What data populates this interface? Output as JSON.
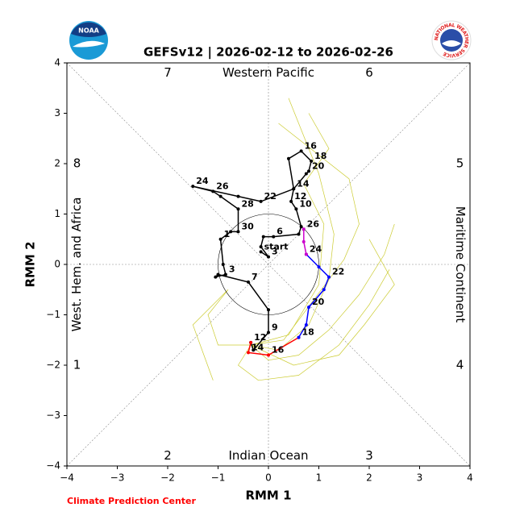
{
  "chart_data": {
    "type": "line",
    "title": "GEFSv12 | 2026-02-12 to 2026-02-26",
    "xlabel": "RMM 1",
    "ylabel": "RMM 2",
    "footer": "Climate Prediction Center",
    "logo_text": "NOAA",
    "logo2_text": "NATIONAL WEATHER SERVICE",
    "xlim": [
      -4,
      4
    ],
    "ylim": [
      -4,
      4
    ],
    "xticks": [
      {
        "value": -4,
        "label": "−4"
      },
      {
        "value": -3,
        "label": "−3"
      },
      {
        "value": -2,
        "label": "−2"
      },
      {
        "value": -1,
        "label": "−1"
      },
      0,
      1,
      2,
      3,
      4
    ],
    "yticks": [
      {
        "value": -4,
        "label": "−4"
      },
      {
        "value": -3,
        "label": "−3"
      },
      {
        "value": -2,
        "label": "−2"
      },
      {
        "value": -1,
        "label": "−1"
      },
      0,
      1,
      2,
      3,
      4
    ],
    "phases": [
      "1",
      "2",
      "3",
      "4",
      "5",
      "6",
      "7",
      "8"
    ],
    "regions": [
      "Indian Ocean",
      "Maritime Continent",
      "Western Pacific",
      "West. Hem. and Africa"
    ],
    "series": [
      {
        "color": "#cccc33",
        "markers": false,
        "x": [
          -0.35,
          0,
          0.6,
          1.2,
          1.8,
          2.3,
          2.5
        ],
        "y": [
          -1.6,
          -1.9,
          -1.8,
          -1.3,
          -0.6,
          0.2,
          0.8
        ]
      },
      {
        "color": "#cccc33",
        "markers": false,
        "x": [
          -0.35,
          0.2,
          0.8,
          1.2,
          1.3,
          1.0,
          0.4
        ],
        "y": [
          -1.6,
          -1.7,
          -1.2,
          -0.3,
          0.6,
          1.8,
          3.3
        ]
      },
      {
        "color": "#cccc33",
        "markers": false,
        "x": [
          -0.35,
          -0.6,
          -0.2,
          0.6,
          1.4,
          2.0,
          2.4
        ],
        "y": [
          -1.6,
          -2.0,
          -2.3,
          -2.2,
          -1.6,
          -0.8,
          -0.1
        ]
      },
      {
        "color": "#cccc33",
        "markers": false,
        "x": [
          -0.35,
          0.3,
          0.9,
          1.5,
          1.8,
          1.6,
          0.2
        ],
        "y": [
          -1.6,
          -1.5,
          -0.7,
          0.1,
          0.8,
          1.7,
          2.8
        ]
      },
      {
        "color": "#cccc33",
        "markers": false,
        "x": [
          -0.35,
          -1.0,
          -1.2,
          -0.8,
          -1.5,
          -1.1
        ],
        "y": [
          -1.6,
          -1.6,
          -1.0,
          -0.5,
          -1.2,
          -2.3
        ]
      },
      {
        "color": "#cccc33",
        "markers": false,
        "x": [
          -0.35,
          0.5,
          1.4,
          1.9,
          2.5,
          2.0
        ],
        "y": [
          -1.6,
          -2.0,
          -1.8,
          -1.2,
          -0.4,
          0.5
        ]
      },
      {
        "color": "#cccc33",
        "markers": false,
        "x": [
          -0.35,
          0.4,
          1.0,
          1.1,
          0.7,
          1.2,
          0.8
        ],
        "y": [
          -1.6,
          -1.4,
          -0.4,
          0.8,
          1.6,
          2.3,
          3.0
        ]
      },
      {
        "color": "#000000",
        "markers": true,
        "x": [
          -0.15,
          0.0,
          -0.15,
          -0.1,
          0.1,
          0.6,
          0.65,
          0.55,
          0.45,
          0.5,
          0.4,
          0.65,
          0.85,
          0.8,
          0.75,
          0.5,
          -0.15,
          -0.6,
          -1.5,
          -1.1,
          -0.95,
          -0.6,
          -0.6,
          -0.75,
          -0.95,
          -0.9,
          -0.85,
          -1.05,
          -1.0,
          -0.4,
          0.0,
          0.0,
          -0.3,
          -0.35
        ],
        "y": [
          0.25,
          0.15,
          0.35,
          0.55,
          0.55,
          0.6,
          0.75,
          1.1,
          1.25,
          1.5,
          2.1,
          2.25,
          2.05,
          1.85,
          1.8,
          1.5,
          1.25,
          1.35,
          1.55,
          1.45,
          1.35,
          1.1,
          0.65,
          0.65,
          0.5,
          0.0,
          -0.2,
          -0.25,
          -0.2,
          -0.35,
          -0.9,
          -1.35,
          -1.7,
          -1.55
        ],
        "labels": [
          "start",
          "3",
          null,
          null,
          "6",
          null,
          null,
          "10",
          "12",
          "14",
          null,
          "16",
          "18",
          "20",
          null,
          null,
          "22",
          null,
          "24",
          "26",
          null,
          "28",
          "30",
          null,
          "1",
          null,
          "3",
          null,
          null,
          "7",
          null,
          "9",
          null,
          "12"
        ]
      },
      {
        "color": "#ff0000",
        "markers": true,
        "x": [
          -0.35,
          -0.4,
          0.0,
          0.6
        ],
        "y": [
          -1.55,
          -1.75,
          -1.8,
          -1.45
        ],
        "labels": [
          null,
          "14",
          "16",
          "18"
        ]
      },
      {
        "color": "#0000ff",
        "markers": true,
        "x": [
          0.6,
          0.75,
          0.8,
          1.1,
          1.2,
          1.0,
          0.75
        ],
        "y": [
          -1.45,
          -1.2,
          -0.85,
          -0.5,
          -0.25,
          -0.05,
          0.2
        ],
        "labels": [
          null,
          null,
          "20",
          null,
          "22",
          null,
          "24"
        ]
      },
      {
        "color": "#cc00cc",
        "markers": true,
        "x": [
          0.75,
          0.7,
          0.7
        ],
        "y": [
          0.2,
          0.45,
          0.7
        ],
        "labels": [
          null,
          null,
          "26"
        ]
      }
    ]
  }
}
